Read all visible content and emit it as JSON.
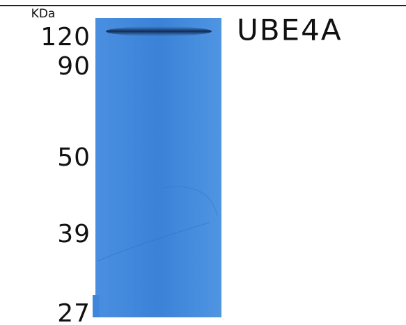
{
  "unit_label": "KDa",
  "markers": [
    "120",
    "90",
    "50",
    "39",
    "27"
  ],
  "protein_label": "UBE4A"
}
